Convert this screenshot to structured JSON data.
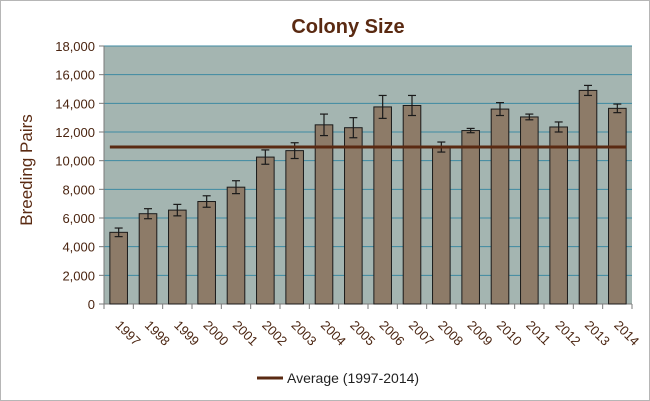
{
  "chart_data": {
    "type": "bar",
    "title": "Colony Size",
    "ylabel": "Breeding Pairs",
    "xlabel": "",
    "ylim": [
      0,
      18000
    ],
    "yticks": [
      0,
      2000,
      4000,
      6000,
      8000,
      10000,
      12000,
      14000,
      16000,
      18000
    ],
    "ytick_labels": [
      "0",
      "2,000",
      "4,000",
      "6,000",
      "8,000",
      "10,000",
      "12,000",
      "14,000",
      "16,000",
      "18,000"
    ],
    "categories": [
      "1997",
      "1998",
      "1999",
      "2000",
      "2001",
      "2002",
      "2003",
      "2004",
      "2005",
      "2006",
      "2007",
      "2008",
      "2009",
      "2010",
      "2011",
      "2012",
      "2013",
      "2014"
    ],
    "values": [
      5000,
      6300,
      6550,
      7150,
      8150,
      10250,
      10700,
      12500,
      12300,
      13750,
      13850,
      10950,
      12100,
      13600,
      13050,
      12350,
      14900,
      13650
    ],
    "error": [
      300,
      350,
      400,
      400,
      450,
      500,
      550,
      750,
      700,
      800,
      700,
      350,
      150,
      450,
      200,
      350,
      350,
      300
    ],
    "average": {
      "label": "Average (1997-2014)",
      "value": 10950
    },
    "grid": true,
    "legend": "bottom",
    "colors": {
      "bar": "#8d7b68",
      "bar_stroke": "#1a1a1a",
      "plot_bg": "#a4b5b1",
      "gridline": "#3e8aa2",
      "average_line": "#5a2a12",
      "error_bar": "#1a1a1a"
    }
  }
}
